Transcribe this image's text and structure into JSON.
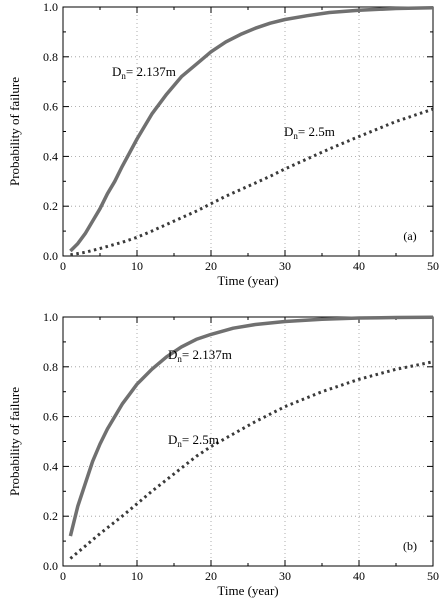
{
  "chart_data": [
    {
      "type": "line",
      "panel_label": "(a)",
      "xlabel": "Time (year)",
      "ylabel": "Probability of failure",
      "xlim": [
        0,
        50
      ],
      "ylim": [
        0,
        1.0
      ],
      "xticks": [
        "0",
        "10",
        "20",
        "30",
        "40",
        "50"
      ],
      "yticks": [
        "0.0",
        "0.2",
        "0.4",
        "0.6",
        "0.8",
        "1.0"
      ],
      "grid": true,
      "series": [
        {
          "style": "solid",
          "color": "#707070",
          "annotation": {
            "base": "D",
            "sub": "n",
            "rest": "= 2.137m"
          },
          "x": [
            1,
            2,
            3,
            4,
            5,
            6,
            7,
            8,
            10,
            12,
            14,
            16,
            18,
            20,
            22,
            24,
            26,
            28,
            30,
            33,
            36,
            40,
            45,
            50
          ],
          "y": [
            0.02,
            0.05,
            0.09,
            0.14,
            0.19,
            0.25,
            0.3,
            0.36,
            0.47,
            0.57,
            0.65,
            0.72,
            0.77,
            0.82,
            0.86,
            0.89,
            0.915,
            0.935,
            0.95,
            0.965,
            0.978,
            0.987,
            0.994,
            0.997
          ]
        },
        {
          "style": "dotted",
          "color": "#3a3a3a",
          "annotation": {
            "base": "D",
            "sub": "n",
            "rest": "= 2.5m"
          },
          "x": [
            1,
            3,
            5,
            8,
            10,
            12,
            15,
            18,
            20,
            22,
            25,
            28,
            30,
            33,
            36,
            40,
            45,
            50
          ],
          "y": [
            0.005,
            0.015,
            0.03,
            0.055,
            0.075,
            0.1,
            0.14,
            0.18,
            0.21,
            0.24,
            0.28,
            0.32,
            0.35,
            0.39,
            0.43,
            0.48,
            0.54,
            0.59
          ]
        }
      ]
    },
    {
      "type": "line",
      "panel_label": "(b)",
      "xlabel": "Time (year)",
      "ylabel": "Probability of failure",
      "xlim": [
        0,
        50
      ],
      "ylim": [
        0,
        1.0
      ],
      "xticks": [
        "0",
        "10",
        "20",
        "30",
        "40",
        "50"
      ],
      "yticks": [
        "0.0",
        "0.2",
        "0.4",
        "0.6",
        "0.8",
        "1.0"
      ],
      "grid": true,
      "series": [
        {
          "style": "solid",
          "color": "#707070",
          "annotation": {
            "base": "D",
            "sub": "n",
            "rest": "= 2.137m"
          },
          "x": [
            1,
            2,
            3,
            4,
            5,
            6,
            8,
            10,
            12,
            14,
            16,
            18,
            20,
            23,
            26,
            30,
            35,
            40,
            45,
            50
          ],
          "y": [
            0.12,
            0.24,
            0.33,
            0.42,
            0.49,
            0.55,
            0.65,
            0.73,
            0.79,
            0.84,
            0.88,
            0.91,
            0.93,
            0.955,
            0.97,
            0.982,
            0.991,
            0.996,
            0.998,
            0.999
          ]
        },
        {
          "style": "dotted",
          "color": "#3a3a3a",
          "annotation": {
            "base": "D",
            "sub": "n",
            "rest": "= 2.5m"
          },
          "x": [
            1,
            3,
            5,
            8,
            10,
            12,
            15,
            18,
            20,
            23,
            26,
            30,
            35,
            40,
            45,
            50
          ],
          "y": [
            0.03,
            0.08,
            0.13,
            0.2,
            0.25,
            0.3,
            0.37,
            0.44,
            0.48,
            0.53,
            0.58,
            0.64,
            0.7,
            0.75,
            0.79,
            0.82
          ]
        }
      ]
    }
  ]
}
